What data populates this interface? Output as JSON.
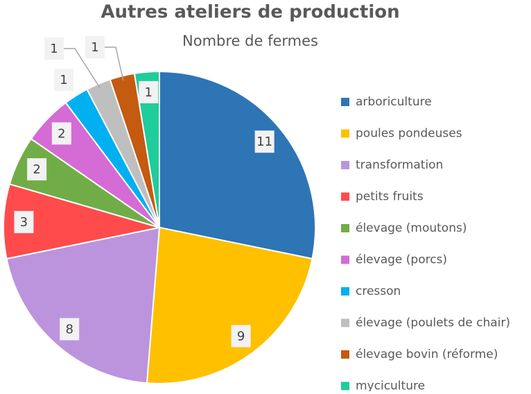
{
  "chart_data": {
    "type": "pie",
    "title": "Autres ateliers de production",
    "subtitle": "Nombre de fermes",
    "categories": [
      "arboriculture",
      "poules pondeuses",
      "transformation",
      "petits fruits",
      "élevage (moutons)",
      "élevage (porcs)",
      "cresson",
      "élevage (poulets de chair)",
      "élevage bovin (réforme)",
      "myciculture"
    ],
    "values": [
      11,
      9,
      8,
      3,
      2,
      2,
      1,
      1,
      1,
      1
    ],
    "colors": [
      "#2e75b6",
      "#ffc000",
      "#bb94dd",
      "#ff4b4b",
      "#70ad47",
      "#d56bd5",
      "#00b0f0",
      "#bfbfbf",
      "#c55a11",
      "#1fcc9c"
    ],
    "legend": "right"
  }
}
